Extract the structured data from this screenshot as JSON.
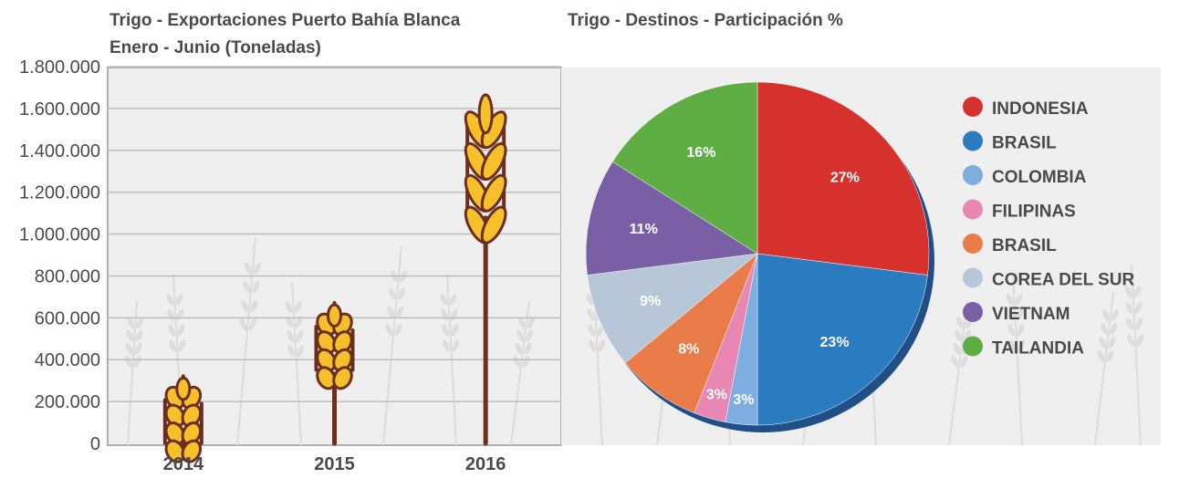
{
  "chart_data": [
    {
      "type": "bar",
      "title": "Trigo - Exportaciones Puerto Bahía Blanca",
      "subtitle": "Enero - Junio (Toneladas)",
      "categories": [
        "2014",
        "2015",
        "2016"
      ],
      "values": [
        260000,
        610000,
        1600000
      ],
      "ylim": [
        0,
        1800000
      ],
      "yticks": [
        "0",
        "200.000",
        "400.000",
        "600.000",
        "800.000",
        "1.000.000",
        "1.200.000",
        "1.400.000",
        "1.600.000",
        "1.800.000"
      ],
      "grid": true,
      "bar_style": "wheat-stalk"
    },
    {
      "type": "pie",
      "title": "Trigo - Destinos - Participación %",
      "legend_position": "right",
      "slices": [
        {
          "label": "INDONESIA",
          "value": 27,
          "display": "27%",
          "color": "#d7312d"
        },
        {
          "label": "BRASIL",
          "value": 23,
          "display": "23%",
          "color": "#2a7bc0"
        },
        {
          "label": "COLOMBIA",
          "value": 3,
          "display": "3%",
          "color": "#7eaedf"
        },
        {
          "label": "FILIPINAS",
          "value": 3,
          "display": "3%",
          "color": "#e887b1"
        },
        {
          "label": "BRASIL",
          "value": 8,
          "display": "8%",
          "color": "#ea7c4a"
        },
        {
          "label": "COREA DEL SUR",
          "value": 9,
          "display": "9%",
          "color": "#b8c7d7"
        },
        {
          "label": "VIETNAM",
          "value": 11,
          "display": "11%",
          "color": "#7a5fa6"
        },
        {
          "label": "TAILANDIA",
          "value": 16,
          "display": "16%",
          "color": "#5fae44"
        }
      ]
    }
  ]
}
